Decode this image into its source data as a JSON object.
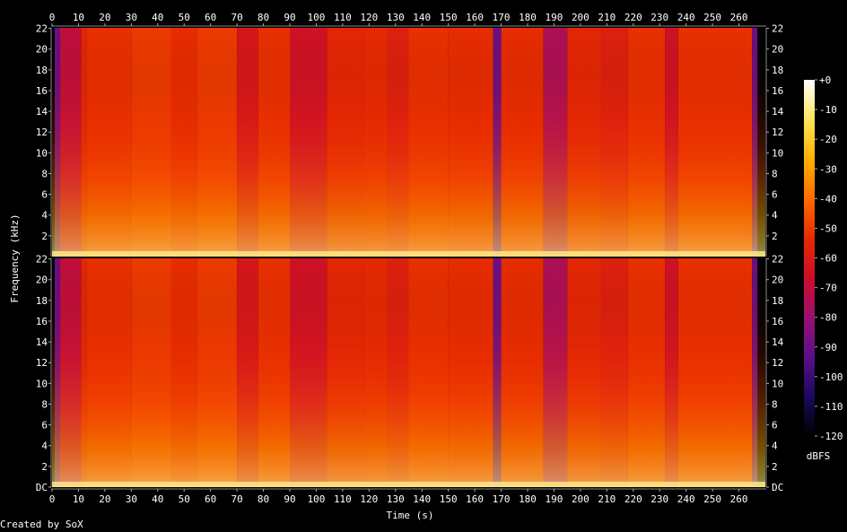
{
  "credit": "Created by SoX",
  "chart_data": {
    "type": "heatmap",
    "subtype": "spectrogram",
    "channels": 2,
    "xlabel": "Time (s)",
    "ylabel": "Frequency (kHz)",
    "colorbar_label": "dBFS",
    "x": {
      "range": [
        0,
        270
      ],
      "ticks": [
        0,
        10,
        20,
        30,
        40,
        50,
        60,
        70,
        80,
        90,
        100,
        110,
        120,
        130,
        140,
        150,
        160,
        170,
        180,
        190,
        200,
        210,
        220,
        230,
        240,
        250,
        260
      ]
    },
    "y": {
      "range": [
        0,
        22.05
      ],
      "ticks": [
        {
          "value": 0,
          "label": "DC"
        },
        {
          "value": 2,
          "label": "2"
        },
        {
          "value": 4,
          "label": "4"
        },
        {
          "value": 6,
          "label": "6"
        },
        {
          "value": 8,
          "label": "8"
        },
        {
          "value": 10,
          "label": "10"
        },
        {
          "value": 12,
          "label": "12"
        },
        {
          "value": 14,
          "label": "14"
        },
        {
          "value": 16,
          "label": "16"
        },
        {
          "value": 18,
          "label": "18"
        },
        {
          "value": 20,
          "label": "20"
        },
        {
          "value": 22,
          "label": "22"
        }
      ]
    },
    "colorbar": {
      "range": [
        -120,
        0
      ],
      "ticks": [
        {
          "value": 0,
          "label": "+0"
        },
        {
          "value": -10,
          "label": "-10"
        },
        {
          "value": -20,
          "label": "-20"
        },
        {
          "value": -30,
          "label": "-30"
        },
        {
          "value": -40,
          "label": "-40"
        },
        {
          "value": -50,
          "label": "-50"
        },
        {
          "value": -60,
          "label": "-60"
        },
        {
          "value": -70,
          "label": "-70"
        },
        {
          "value": -80,
          "label": "-80"
        },
        {
          "value": -90,
          "label": "-90"
        },
        {
          "value": -100,
          "label": "-100"
        },
        {
          "value": -110,
          "label": "-110"
        },
        {
          "value": -120,
          "label": "-120"
        }
      ],
      "palette": [
        "#000000",
        "#1a0a5e",
        "#5a0f8a",
        "#9a1070",
        "#cc0d2a",
        "#e62a00",
        "#ff6a00",
        "#ffb000",
        "#ffe45a",
        "#ffffff"
      ]
    },
    "duration_s": 267,
    "time_regions_dBFS_at_mid_band": [
      {
        "start": 0,
        "end": 1,
        "level": -120
      },
      {
        "start": 1,
        "end": 3,
        "level": -90
      },
      {
        "start": 3,
        "end": 11,
        "level": -70
      },
      {
        "start": 11,
        "end": 13,
        "level": -55
      },
      {
        "start": 13,
        "end": 30,
        "level": -52
      },
      {
        "start": 30,
        "end": 45,
        "level": -50
      },
      {
        "start": 45,
        "end": 55,
        "level": -53
      },
      {
        "start": 55,
        "end": 70,
        "level": -50
      },
      {
        "start": 70,
        "end": 78,
        "level": -62
      },
      {
        "start": 78,
        "end": 90,
        "level": -52
      },
      {
        "start": 90,
        "end": 104,
        "level": -65
      },
      {
        "start": 104,
        "end": 118,
        "level": -55
      },
      {
        "start": 118,
        "end": 127,
        "level": -54
      },
      {
        "start": 127,
        "end": 135,
        "level": -58
      },
      {
        "start": 135,
        "end": 150,
        "level": -52
      },
      {
        "start": 150,
        "end": 167,
        "level": -53
      },
      {
        "start": 167,
        "end": 170,
        "level": -90
      },
      {
        "start": 170,
        "end": 186,
        "level": -53
      },
      {
        "start": 186,
        "end": 195,
        "level": -75
      },
      {
        "start": 195,
        "end": 208,
        "level": -55
      },
      {
        "start": 208,
        "end": 218,
        "level": -58
      },
      {
        "start": 218,
        "end": 232,
        "level": -52
      },
      {
        "start": 232,
        "end": 237,
        "level": -65
      },
      {
        "start": 237,
        "end": 265,
        "level": -52
      },
      {
        "start": 265,
        "end": 267,
        "level": -90
      }
    ]
  }
}
